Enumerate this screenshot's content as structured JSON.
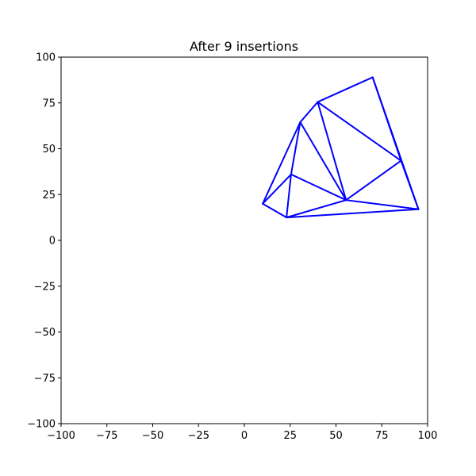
{
  "chart_data": {
    "type": "line",
    "title": "After 9 insertions",
    "xlabel": "",
    "ylabel": "",
    "xlim": [
      -100,
      100
    ],
    "ylim": [
      -100,
      100
    ],
    "xticks": [
      -100,
      -75,
      -50,
      -25,
      0,
      25,
      50,
      75,
      100
    ],
    "yticks": [
      -100,
      -75,
      -50,
      -25,
      0,
      25,
      50,
      75,
      100
    ],
    "grid": false,
    "line_color": "#0000ff",
    "vertices": [
      {
        "x": 10,
        "y": 20
      },
      {
        "x": 23,
        "y": 12.5
      },
      {
        "x": 25.5,
        "y": 36
      },
      {
        "x": 30.5,
        "y": 64.5
      },
      {
        "x": 40,
        "y": 75.5
      },
      {
        "x": 70,
        "y": 89
      },
      {
        "x": 85.5,
        "y": 43.5
      },
      {
        "x": 95,
        "y": 17
      },
      {
        "x": 55.5,
        "y": 22
      }
    ],
    "edges": [
      [
        0,
        1
      ],
      [
        0,
        2
      ],
      [
        0,
        3
      ],
      [
        1,
        2
      ],
      [
        1,
        8
      ],
      [
        1,
        7
      ],
      [
        2,
        3
      ],
      [
        2,
        8
      ],
      [
        3,
        4
      ],
      [
        3,
        8
      ],
      [
        4,
        8
      ],
      [
        4,
        5
      ],
      [
        4,
        6
      ],
      [
        5,
        6
      ],
      [
        5,
        7
      ],
      [
        6,
        7
      ],
      [
        6,
        8
      ],
      [
        7,
        8
      ]
    ]
  }
}
